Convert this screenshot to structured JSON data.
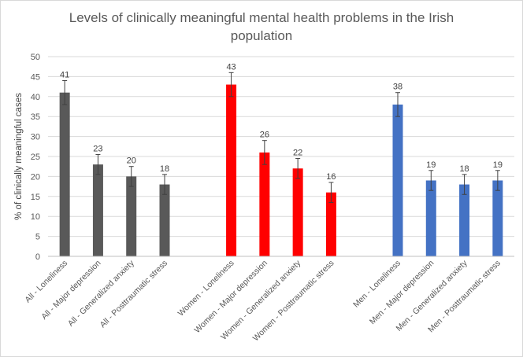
{
  "chart_data": {
    "type": "bar",
    "title_lines": [
      "Levels of clinically meaningful mental health problems in the Irish",
      "population"
    ],
    "ylabel": "% of clinically meaningful cases",
    "ylim": [
      0,
      50
    ],
    "yticks": [
      0,
      5,
      10,
      15,
      20,
      25,
      30,
      35,
      40,
      45,
      50
    ],
    "grid": true,
    "legend": "none",
    "groups": [
      {
        "color": "#595959",
        "bars": [
          {
            "label": "All - Loneliness",
            "value": 41,
            "err_low": 38,
            "err_high": 44
          },
          {
            "label": "All - Major depression",
            "value": 23,
            "err_low": 20.5,
            "err_high": 25.5
          },
          {
            "label": "All - Generalized anxiety",
            "value": 20,
            "err_low": 17.5,
            "err_high": 22.5
          },
          {
            "label": "All - Posttraumatic stress",
            "value": 18,
            "err_low": 15.5,
            "err_high": 20.5
          }
        ]
      },
      {
        "color": "#ff0000",
        "bars": [
          {
            "label": "Women - Loneliness",
            "value": 43,
            "err_low": 40,
            "err_high": 46
          },
          {
            "label": "Women - Major depression",
            "value": 26,
            "err_low": 23,
            "err_high": 29
          },
          {
            "label": "Women - Generalized anxiety",
            "value": 22,
            "err_low": 19.5,
            "err_high": 24.5
          },
          {
            "label": "Women - Posttraumatic stress",
            "value": 16,
            "err_low": 13.5,
            "err_high": 18.5
          }
        ]
      },
      {
        "color": "#4472c4",
        "bars": [
          {
            "label": "Men - Loneliness",
            "value": 38,
            "err_low": 35,
            "err_high": 41
          },
          {
            "label": "Men - Major depression",
            "value": 19,
            "err_low": 16.5,
            "err_high": 21.5
          },
          {
            "label": "Men - Generalized anxiety",
            "value": 18,
            "err_low": 15.5,
            "err_high": 20.5
          },
          {
            "label": "Men - Posttraumatic stress",
            "value": 19,
            "err_low": 16.5,
            "err_high": 21.5
          }
        ]
      }
    ]
  }
}
